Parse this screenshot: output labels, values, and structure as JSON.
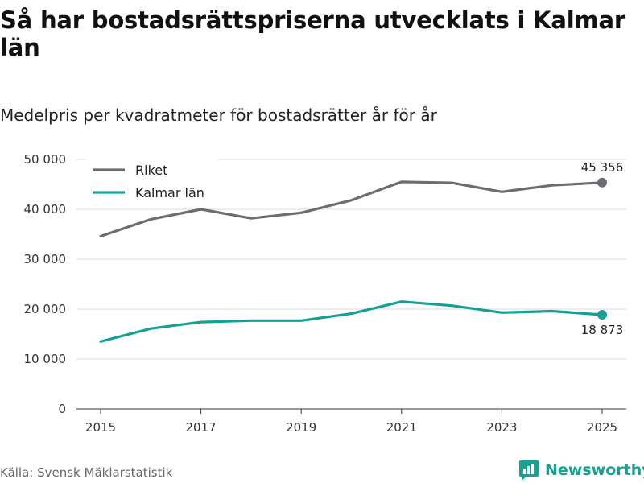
{
  "header": {
    "title": "Så har bostadsrättspriserna utvecklats i Kalmar län",
    "subtitle": "Medelpris per kvadratmeter för bostadsrätter år för år"
  },
  "footer": {
    "source": "Källa: Svensk Mäklarstatistik",
    "brand": "Newsworthy"
  },
  "colors": {
    "riket": "#6e6c73",
    "kalmar": "#15a096",
    "grid": "#d9d9d9",
    "brand": "#16a394"
  },
  "chart_data": {
    "type": "line",
    "title": "Så har bostadsrättspriserna utvecklats i Kalmar län",
    "subtitle": "Medelpris per kvadratmeter för bostadsrätter år för år",
    "xlabel": "",
    "ylabel": "",
    "x": [
      2015,
      2016,
      2017,
      2018,
      2019,
      2020,
      2021,
      2022,
      2023,
      2024,
      2025
    ],
    "xticks": [
      2015,
      2017,
      2019,
      2021,
      2023,
      2025
    ],
    "xtick_labels": [
      "2015",
      "2017",
      "2019",
      "2021",
      "2023",
      "2025"
    ],
    "ylim": [
      0,
      50000
    ],
    "yticks": [
      0,
      10000,
      20000,
      30000,
      40000,
      50000
    ],
    "ytick_labels": [
      "0",
      "10 000",
      "20 000",
      "30 000",
      "40 000",
      "50 000"
    ],
    "grid": true,
    "legend_position": "top-left",
    "series": [
      {
        "name": "Riket",
        "color": "#6e6c73",
        "values": [
          34600,
          38000,
          40000,
          38200,
          39300,
          41800,
          45500,
          45300,
          43500,
          44800,
          45356
        ],
        "end_label": "45 356"
      },
      {
        "name": "Kalmar län",
        "color": "#15a096",
        "values": [
          13500,
          16100,
          17400,
          17700,
          17700,
          19100,
          21500,
          20700,
          19300,
          19600,
          18873
        ],
        "end_label": "18 873"
      }
    ]
  }
}
